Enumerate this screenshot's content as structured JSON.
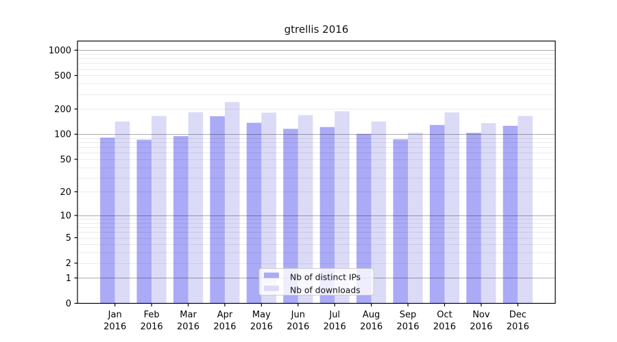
{
  "chart_data": {
    "type": "bar",
    "title": "gtrellis 2016",
    "categories": [
      "Jan",
      "Feb",
      "Mar",
      "Apr",
      "May",
      "Jun",
      "Jul",
      "Aug",
      "Sep",
      "Oct",
      "Nov",
      "Dec"
    ],
    "x_year_label": "2016",
    "series": [
      {
        "name": "Nb of distinct IPs",
        "color": "#aaaaf7",
        "values": [
          91,
          86,
          95,
          164,
          137,
          116,
          122,
          101,
          87,
          129,
          104,
          126
        ]
      },
      {
        "name": "Nb of downloads",
        "color": "#dbdbf8",
        "values": [
          142,
          165,
          183,
          242,
          181,
          169,
          188,
          142,
          104,
          182,
          136,
          165
        ]
      }
    ],
    "y_scale": "log10(1+x)",
    "y_ticks": [
      0,
      1,
      2,
      5,
      10,
      20,
      50,
      100,
      200,
      500,
      1000
    ],
    "ylim": [
      0,
      1280
    ],
    "xlabel": "",
    "ylabel": "",
    "grid": "major decades dark, log minors light, drawn over bars",
    "legend_position": "inside bottom-center",
    "frame_color": "#000000",
    "major_grid_color": "rgba(0,0,0,0.33)",
    "minor_grid_color": "rgba(0,0,0,0.08)",
    "tick_label_color": "#000000",
    "legend_border_color": "#cccccc"
  }
}
